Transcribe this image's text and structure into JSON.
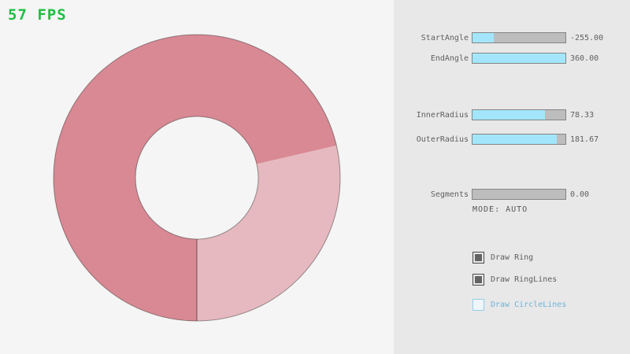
{
  "fps": {
    "text": "57 FPS",
    "color": "#1fbf42"
  },
  "ring": {
    "dark_color": "#d98994",
    "light_color": "#e5b9bf",
    "outline_color": "rgba(0,0,0,0.38)",
    "line_color": "rgba(0,0,0,0.5)"
  },
  "panel": {
    "accent_color": "#a3e6fb",
    "unchecked_text_color": "#6fb3d6",
    "sliders": [
      {
        "label": "StartAngle",
        "value": "-255.00",
        "fill_pct": 23
      },
      {
        "label": "EndAngle",
        "value": "360.00",
        "fill_pct": 100
      },
      {
        "label": "InnerRadius",
        "value": "78.33",
        "fill_pct": 78
      },
      {
        "label": "OuterRadius",
        "value": "181.67",
        "fill_pct": 91
      },
      {
        "label": "Segments",
        "value": "0.00",
        "fill_pct": 0
      }
    ],
    "mode_text": "MODE: AUTO",
    "checkboxes": [
      {
        "label": "Draw Ring",
        "checked": true
      },
      {
        "label": "Draw RingLines",
        "checked": true
      },
      {
        "label": "Draw CircleLines",
        "checked": false
      }
    ]
  }
}
